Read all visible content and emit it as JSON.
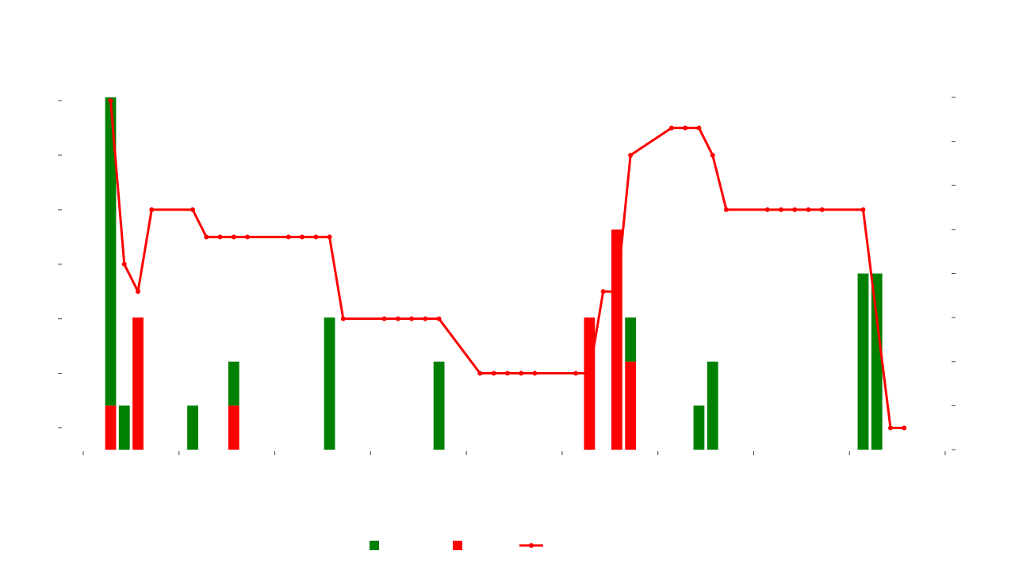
{
  "chart_data": {
    "type": "bar",
    "xlim": [
      0,
      63
    ],
    "xticks": [
      0,
      7,
      14,
      21,
      28,
      35,
      42,
      49,
      56,
      63
    ],
    "ylim": [
      0.6,
      7.06
    ],
    "yticks": [
      1,
      2,
      3,
      4,
      5,
      6,
      7
    ],
    "y2lim": [
      0,
      8
    ],
    "y2ticks": [
      0,
      1,
      2,
      3,
      4,
      5,
      6,
      7,
      8
    ],
    "series": [
      {
        "type": "bar",
        "axis": "y2",
        "color": "#008000",
        "x": [
          2,
          3,
          8,
          11,
          18,
          26,
          40,
          45,
          46,
          57,
          58
        ],
        "values": [
          7,
          1,
          1,
          1,
          3,
          2,
          1,
          1,
          2,
          4,
          4
        ]
      },
      {
        "type": "bar",
        "axis": "y2",
        "color": "#ff0000",
        "x": [
          2,
          4,
          11,
          37,
          39,
          40
        ],
        "values": [
          1,
          3,
          1,
          3,
          5,
          2
        ]
      },
      {
        "type": "line",
        "color": "#ff0000",
        "x": [
          2,
          3,
          4,
          5,
          8,
          9,
          10,
          11,
          12,
          15,
          16,
          17,
          18,
          19,
          22,
          23,
          24,
          25,
          26,
          29,
          30,
          31,
          32,
          33,
          36,
          37,
          38,
          39,
          40,
          43,
          44,
          45,
          46,
          47,
          50,
          51,
          52,
          53,
          54,
          57,
          59,
          60
        ],
        "values": [
          7,
          4,
          3.5,
          5,
          5,
          4.5,
          4.5,
          4.5,
          4.5,
          4.5,
          4.5,
          4.5,
          4.5,
          3,
          3,
          3,
          3,
          3,
          3,
          2,
          2,
          2,
          2,
          2,
          2,
          2,
          3.5,
          3.5,
          6,
          6.5,
          6.5,
          6.5,
          6,
          5,
          5,
          5,
          5,
          5,
          5,
          5,
          1,
          1
        ]
      }
    ]
  }
}
